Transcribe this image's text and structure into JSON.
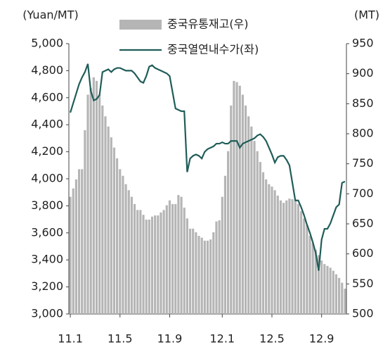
{
  "chart_data": {
    "type": "combo",
    "y_label": "(Yuan/MT)",
    "y2_label": "(MT)",
    "categories": [
      "11.1",
      null,
      null,
      null,
      null,
      null,
      null,
      null,
      null,
      null,
      null,
      null,
      null,
      null,
      null,
      null,
      null,
      "11.5",
      null,
      null,
      null,
      null,
      null,
      null,
      null,
      null,
      null,
      null,
      null,
      null,
      null,
      null,
      null,
      null,
      "11.9",
      null,
      null,
      null,
      null,
      null,
      null,
      null,
      null,
      null,
      null,
      null,
      null,
      null,
      null,
      null,
      null,
      null,
      "12.1",
      null,
      null,
      null,
      null,
      null,
      null,
      null,
      null,
      null,
      null,
      null,
      null,
      null,
      null,
      null,
      null,
      "12.5",
      null,
      null,
      null,
      null,
      null,
      null,
      null,
      null,
      null,
      null,
      null,
      null,
      null,
      null,
      null,
      null,
      "12.9",
      null,
      null,
      null,
      null,
      null,
      null,
      null,
      null
    ],
    "series": [
      {
        "name": "중국유통재고(우)",
        "type": "bar",
        "axis": "y2",
        "color": "#b5b5b5",
        "values": [
          695,
          709,
          724,
          741,
          741,
          806,
          865,
          876,
          894,
          888,
          865,
          847,
          829,
          812,
          794,
          777,
          759,
          741,
          730,
          716,
          706,
          695,
          683,
          673,
          673,
          665,
          657,
          657,
          662,
          664,
          664,
          669,
          673,
          681,
          689,
          683,
          683,
          698,
          695,
          677,
          659,
          642,
          642,
          636,
          630,
          627,
          622,
          622,
          624,
          636,
          654,
          656,
          695,
          730,
          771,
          847,
          888,
          886,
          880,
          865,
          847,
          829,
          812,
          788,
          771,
          753,
          736,
          724,
          716,
          712,
          706,
          697,
          689,
          685,
          689,
          692,
          691,
          689,
          683,
          671,
          659,
          648,
          630,
          618,
          607,
          598,
          589,
          583,
          580,
          577,
          572,
          566,
          560,
          552,
          542
        ]
      },
      {
        "name": "중국열연내수가(좌)",
        "type": "line",
        "axis": "y",
        "color": "#1f5d58",
        "values": [
          4490,
          4560,
          4630,
          4700,
          4750,
          4790,
          4850,
          4650,
          4580,
          4590,
          4620,
          4790,
          4800,
          4810,
          4790,
          4810,
          4820,
          4820,
          4810,
          4800,
          4800,
          4800,
          4780,
          4750,
          4720,
          4710,
          4760,
          4830,
          4840,
          4820,
          4810,
          4800,
          4790,
          4780,
          4760,
          4640,
          4520,
          4510,
          4500,
          4500,
          4050,
          4150,
          4170,
          4180,
          4170,
          4150,
          4200,
          4220,
          4230,
          4240,
          4260,
          4260,
          4270,
          4260,
          4260,
          4280,
          4280,
          4280,
          4230,
          4260,
          4270,
          4280,
          4290,
          4300,
          4320,
          4330,
          4310,
          4280,
          4230,
          4180,
          4120,
          4160,
          4170,
          4170,
          4140,
          4100,
          3970,
          3840,
          3840,
          3790,
          3730,
          3660,
          3600,
          3530,
          3450,
          3320,
          3550,
          3630,
          3630,
          3670,
          3730,
          3790,
          3810,
          3970,
          3980
        ]
      }
    ],
    "ylim": [
      3000,
      5000
    ],
    "yticks": [
      {
        "value": 3000,
        "label": "3,000"
      },
      {
        "value": 3200,
        "label": "3,200"
      },
      {
        "value": 3400,
        "label": "3,400"
      },
      {
        "value": 3600,
        "label": "3,600"
      },
      {
        "value": 3800,
        "label": "3,800"
      },
      {
        "value": 4000,
        "label": "4,000"
      },
      {
        "value": 4200,
        "label": "4,200"
      },
      {
        "value": 4400,
        "label": "4,400"
      },
      {
        "value": 4600,
        "label": "4,600"
      },
      {
        "value": 4800,
        "label": "4,800"
      },
      {
        "value": 5000,
        "label": "5,000"
      }
    ],
    "y2lim": [
      500,
      950
    ],
    "y2ticks": [
      500,
      550,
      600,
      650,
      700,
      750,
      800,
      850,
      900,
      950
    ]
  }
}
